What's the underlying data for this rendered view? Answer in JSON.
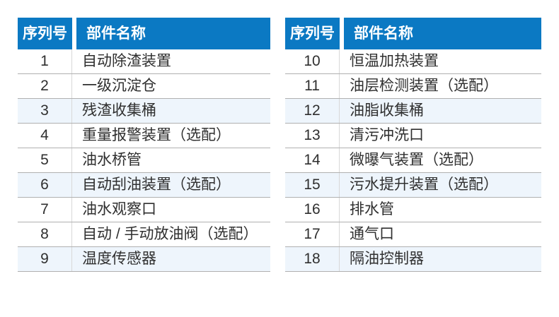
{
  "colors": {
    "header_bg": "#0b79c3",
    "header_text": "#ffffff",
    "alt_row_bg": "#eef5fc",
    "row_divider": "#b0b0b0",
    "column_divider": "#d8d8d8",
    "body_text": "#2f2f2f"
  },
  "tables": [
    {
      "headers": {
        "serial": "序列号",
        "part": "部件名称"
      },
      "rows": [
        {
          "no": "1",
          "part": "自动除渣装置"
        },
        {
          "no": "2",
          "part": "一级沉淀仓"
        },
        {
          "no": "3",
          "part": "残渣收集桶"
        },
        {
          "no": "4",
          "part": "重量报警装置（选配）"
        },
        {
          "no": "5",
          "part": "油水桥管"
        },
        {
          "no": "6",
          "part": "自动刮油装置（选配）"
        },
        {
          "no": "7",
          "part": "油水观察口"
        },
        {
          "no": "8",
          "part": "自动 / 手动放油阀（选配）"
        },
        {
          "no": "9",
          "part": "温度传感器"
        }
      ]
    },
    {
      "headers": {
        "serial": "序列号",
        "part": "部件名称"
      },
      "rows": [
        {
          "no": "10",
          "part": "恒温加热装置"
        },
        {
          "no": "11",
          "part": "油层检测装置（选配）"
        },
        {
          "no": "12",
          "part": "油脂收集桶"
        },
        {
          "no": "13",
          "part": "清污冲洗口"
        },
        {
          "no": "14",
          "part": "微曝气装置（选配）"
        },
        {
          "no": "15",
          "part": "污水提升装置（选配）"
        },
        {
          "no": "16",
          "part": "排水管"
        },
        {
          "no": "17",
          "part": "通气口"
        },
        {
          "no": "18",
          "part": "隔油控制器"
        }
      ]
    }
  ]
}
